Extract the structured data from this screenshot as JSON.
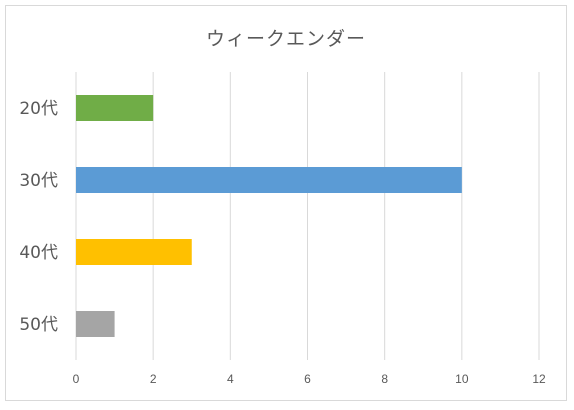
{
  "chart_data": {
    "type": "bar",
    "orientation": "horizontal",
    "title": "ウィークエンダー",
    "categories": [
      "20代",
      "30代",
      "40代",
      "50代"
    ],
    "values": [
      2,
      10,
      3,
      1
    ],
    "colors": [
      "#70ad47",
      "#5b9bd5",
      "#ffc000",
      "#a5a5a5"
    ],
    "xlim": [
      0,
      12
    ],
    "xticks": [
      0,
      2,
      4,
      6,
      8,
      10,
      12
    ],
    "grid": "vertical",
    "legend": "none",
    "xlabel": "",
    "ylabel": ""
  }
}
